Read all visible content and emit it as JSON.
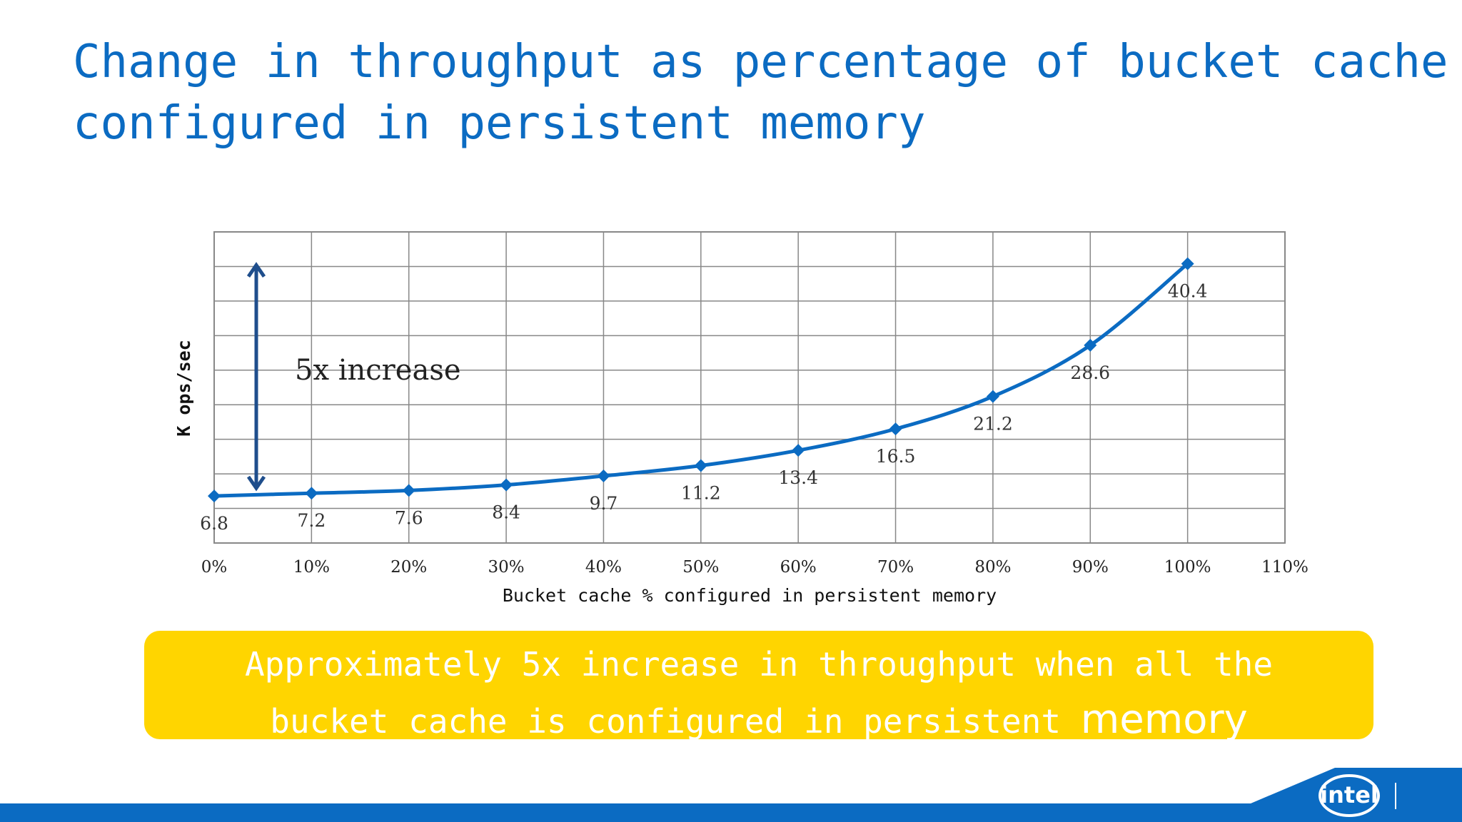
{
  "title": {
    "line1": "Change in throughput as percentage of bucket cache",
    "line2": "configured in persistent memory"
  },
  "chart_data": {
    "type": "line",
    "title": "",
    "xlabel": "Bucket cache % configured in persistent memory",
    "ylabel": "K ops/sec",
    "x": [
      0,
      10,
      20,
      30,
      40,
      50,
      60,
      70,
      80,
      90,
      100
    ],
    "xticks": [
      "0%",
      "10%",
      "20%",
      "30%",
      "40%",
      "50%",
      "60%",
      "70%",
      "80%",
      "90%",
      "100%",
      "110%"
    ],
    "xlim": [
      0,
      110
    ],
    "ylim": [
      0,
      45
    ],
    "grid": true,
    "series": [
      {
        "values": [
          6.8,
          7.2,
          7.6,
          8.4,
          9.7,
          11.2,
          13.4,
          16.5,
          21.2,
          28.6,
          40.4
        ],
        "labels": [
          "6.8",
          "7.2",
          "7.6",
          "8.4",
          "9.7",
          "11.2",
          "13.4",
          "16.5",
          "21.2",
          "28.6",
          "40.4"
        ],
        "color": "#0b6bc2"
      }
    ],
    "annotation": {
      "text": "5x increase",
      "from_value": 6.8,
      "to_value": 40.4,
      "arrow_color": "#1f4e8c"
    }
  },
  "callout": {
    "line1": "Approximately 5x increase in throughput when all the",
    "line2": "bucket cache is configured in persistent",
    "line2_end": "memory",
    "color": "#ffd500"
  },
  "logo": {
    "text": "intel",
    "icon": "intel-logo"
  },
  "colors": {
    "accent": "#0b6bc2",
    "footer": "#0b6bc2"
  }
}
